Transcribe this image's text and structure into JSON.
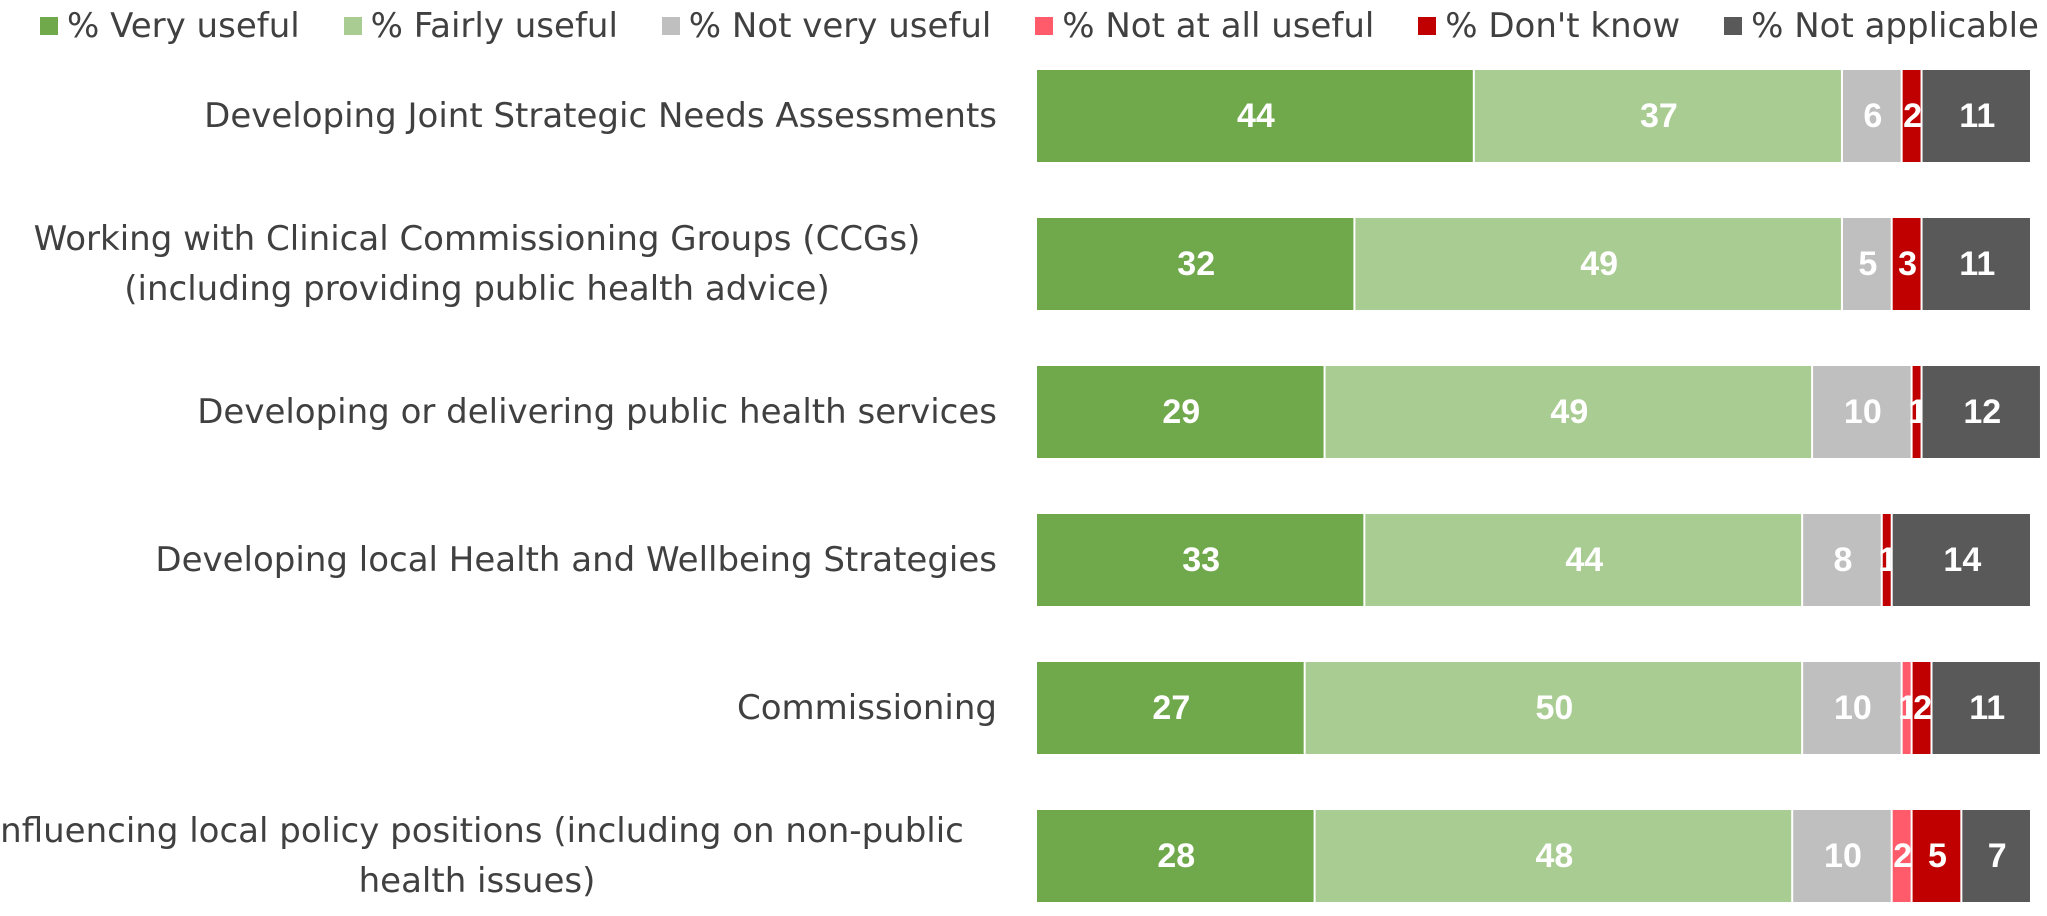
{
  "chart_data": {
    "type": "stacked-bar-horizontal",
    "categories": [
      "Developing Joint Strategic Needs Assessments",
      "Working with Clinical Commissioning Groups (CCGs) (including providing public health advice)",
      "Developing or delivering public health services",
      "Developing local Health and Wellbeing Strategies",
      "Commissioning",
      "Influencing local policy positions (including on non-public health issues)"
    ],
    "series": [
      {
        "name": "% Very useful",
        "color": "#70a84c",
        "values": [
          44,
          32,
          29,
          33,
          27,
          28
        ]
      },
      {
        "name": "% Fairly useful",
        "color": "#a9cc93",
        "values": [
          37,
          49,
          49,
          44,
          50,
          48
        ]
      },
      {
        "name": "% Not very useful",
        "color": "#bfbfbf",
        "values": [
          6,
          5,
          10,
          8,
          10,
          10
        ]
      },
      {
        "name": "% Not at all useful",
        "color": "#ff5b6b",
        "values": [
          null,
          null,
          null,
          null,
          1,
          2
        ]
      },
      {
        "name": "% Don't know",
        "color": "#c00000",
        "values": [
          2,
          3,
          1,
          1,
          2,
          5
        ]
      },
      {
        "name": "% Not applicable",
        "color": "#595959",
        "values": [
          11,
          11,
          12,
          14,
          11,
          7
        ]
      }
    ]
  }
}
